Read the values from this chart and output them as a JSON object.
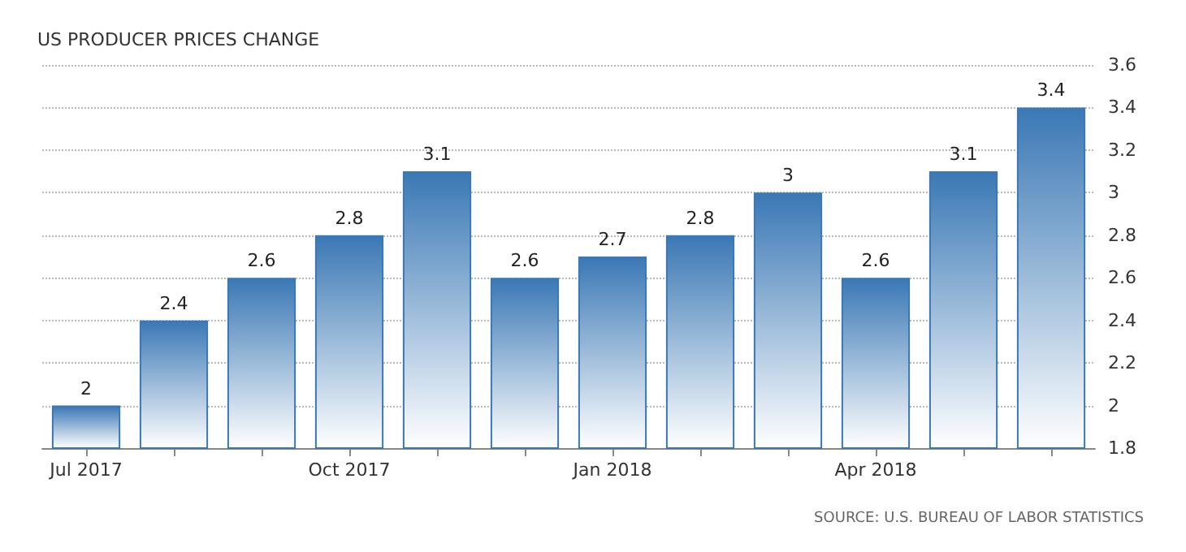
{
  "chart_data": {
    "type": "bar",
    "title": "US PRODUCER PRICES CHANGE",
    "categories": [
      "Jul 2017",
      null,
      null,
      "Oct 2017",
      null,
      null,
      "Jan 2018",
      null,
      null,
      "Apr 2018",
      null,
      null
    ],
    "values": [
      2,
      2.4,
      2.6,
      2.8,
      3.1,
      2.6,
      2.7,
      2.8,
      3,
      2.6,
      3.1,
      3.4
    ],
    "color": "#3a78b5",
    "ylim": [
      1.8,
      3.6
    ],
    "yticks": [
      1.8,
      2,
      2.2,
      2.4,
      2.6,
      2.8,
      3,
      3.2,
      3.4,
      3.6
    ],
    "grid": "y",
    "data_labels": true,
    "annotations": [
      "SOURCE: U.S. BUREAU OF LABOR STATISTICS"
    ]
  }
}
